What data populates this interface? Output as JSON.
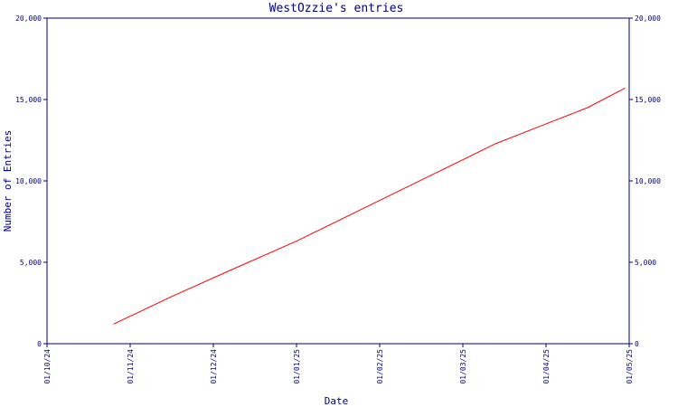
{
  "chart_data": {
    "type": "line",
    "title": "WestOzzie's entries",
    "xlabel": "Date",
    "ylabel": "Number of Entries",
    "x_ticks": [
      "01/10/24",
      "01/11/24",
      "01/12/24",
      "01/01/25",
      "01/02/25",
      "01/03/25",
      "01/04/25",
      "01/05/25"
    ],
    "y_ticks": [
      "0",
      "5,000",
      "10,000",
      "15,000",
      "20,000"
    ],
    "y_ticks_right": [
      "0",
      "5,000",
      "10,000",
      "15,000",
      "20,000"
    ],
    "ylim": [
      0,
      20000
    ],
    "x_tick_values": [
      0,
      1,
      2,
      3,
      4,
      5,
      6,
      7
    ],
    "xlim": [
      0,
      7
    ],
    "grid": false,
    "series": [
      {
        "color": "#ff0000",
        "x": [
          0.8,
          1.5,
          2.2,
          3.0,
          3.8,
          4.6,
          5.4,
          5.8,
          6.5,
          6.95
        ],
        "y": [
          1200,
          2900,
          4500,
          6300,
          8300,
          10300,
          12300,
          13100,
          14500,
          15700
        ]
      }
    ]
  },
  "colors": {
    "axis": "#000080",
    "text": "#000080",
    "line": "#ff0000"
  }
}
